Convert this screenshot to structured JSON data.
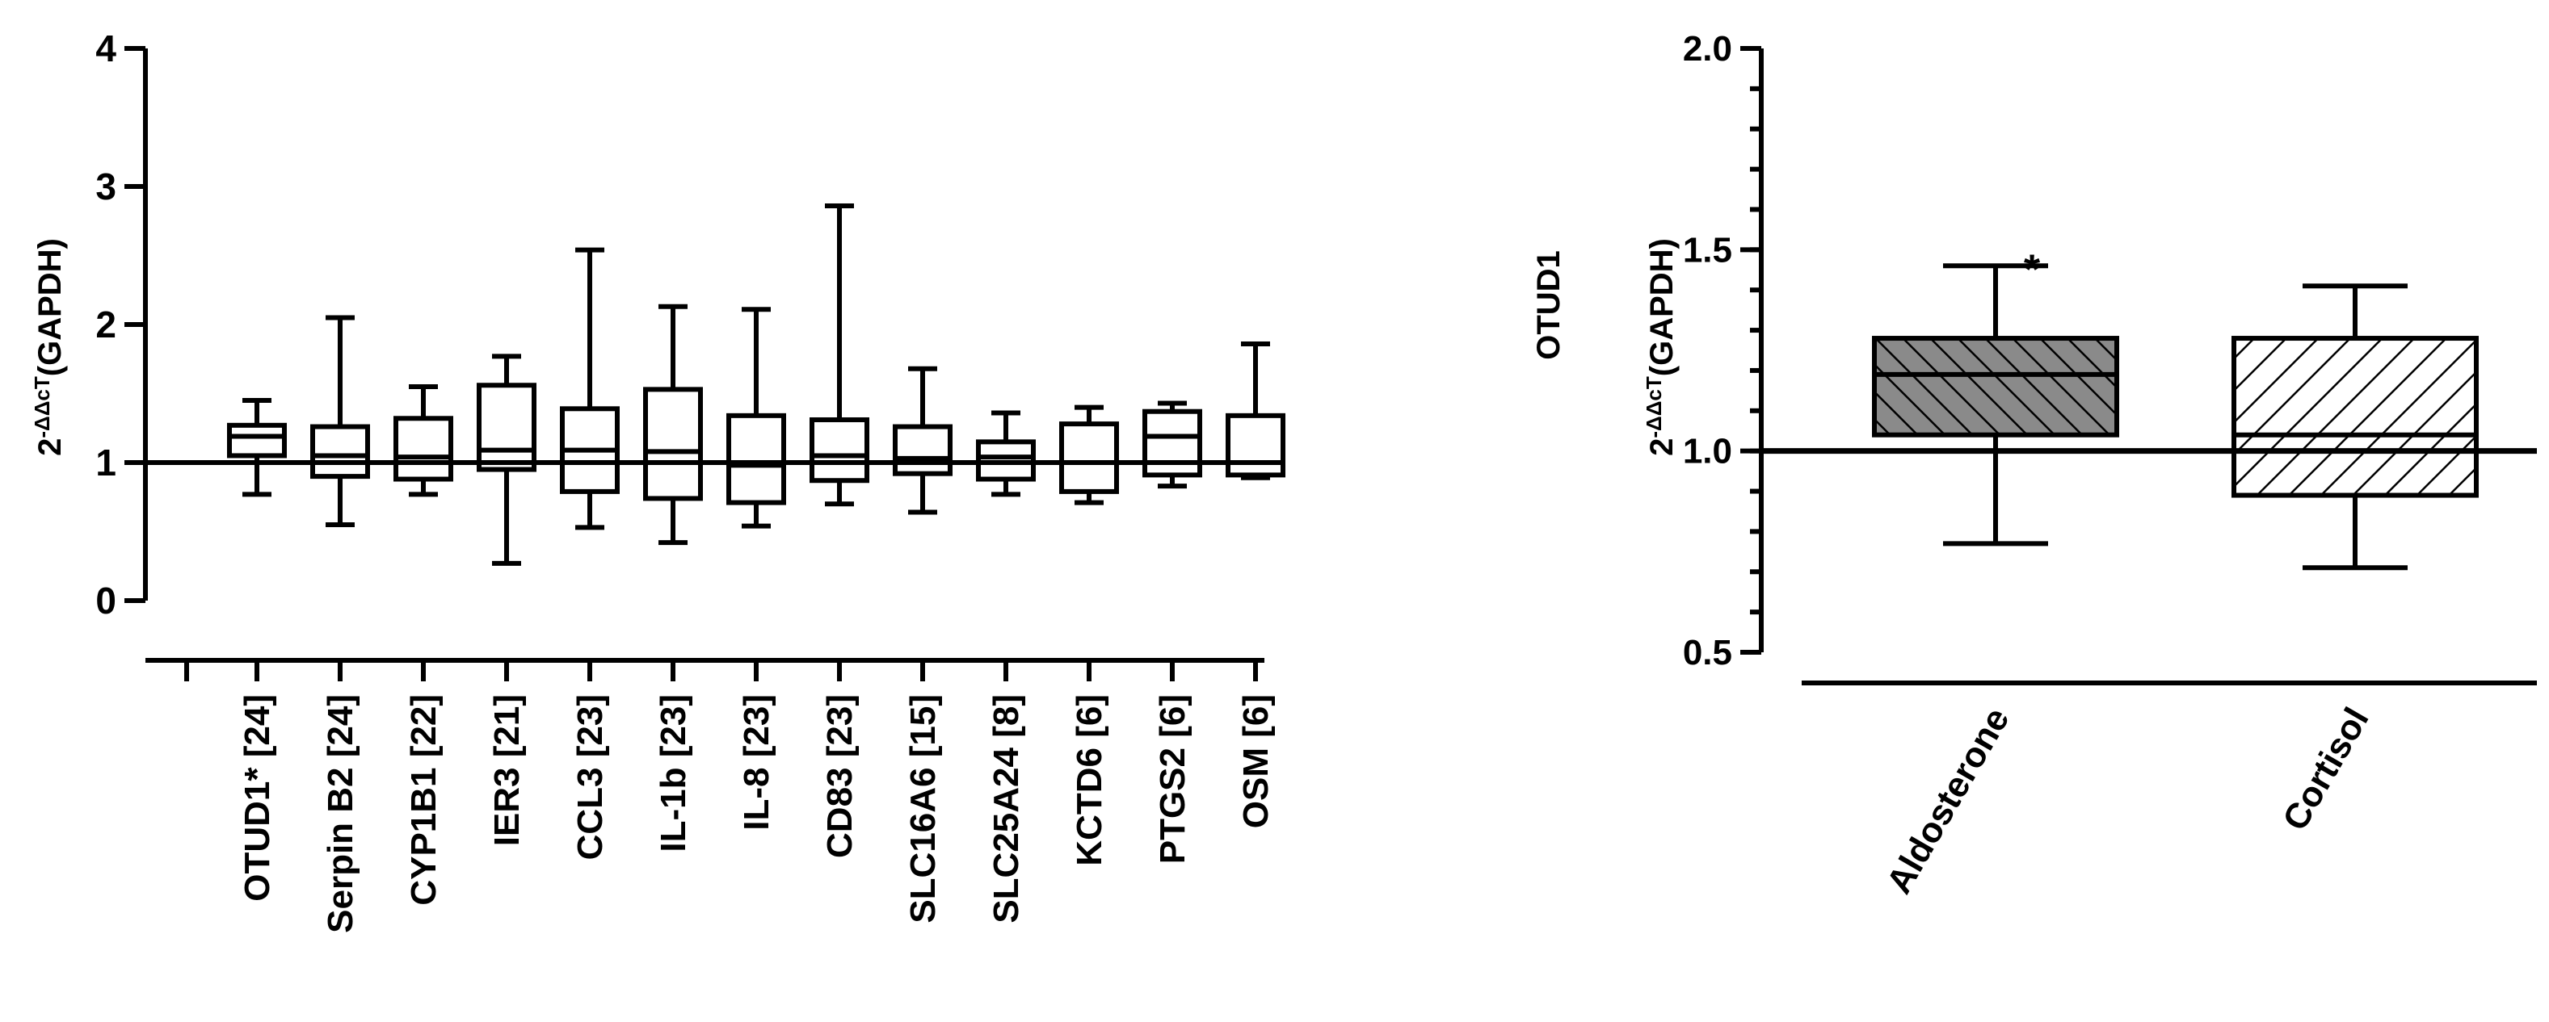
{
  "chart_data": [
    {
      "type": "box",
      "ylabel_main": "2",
      "ylabel_sup": "-ΔΔcT",
      "ylabel_tail": "(GAPDH)",
      "ylim": [
        0,
        4
      ],
      "yticks": [
        "0",
        "1",
        "2",
        "3",
        "4"
      ],
      "reference_line": 1,
      "categories": [
        "OTUD1* [24]",
        "Serpin B2 [24]",
        "CYP1B1 [22]",
        "IER3 [21]",
        "CCL3 [23]",
        "IL-1b [23]",
        "IL-8 [23]",
        "CD83 [23]",
        "SLC16A6 [15]",
        "SLC25A24 [8]",
        "KCTD6 [6]",
        "PTGS2 [6]",
        "OSM [6]"
      ],
      "boxes": [
        {
          "min": 0.77,
          "q1": 1.05,
          "median": 1.19,
          "q3": 1.27,
          "max": 1.45
        },
        {
          "min": 0.55,
          "q1": 0.9,
          "median": 1.05,
          "q3": 1.26,
          "max": 2.05
        },
        {
          "min": 0.77,
          "q1": 0.88,
          "median": 1.04,
          "q3": 1.32,
          "max": 1.55
        },
        {
          "min": 0.27,
          "q1": 0.95,
          "median": 1.09,
          "q3": 1.56,
          "max": 1.77
        },
        {
          "min": 0.53,
          "q1": 0.79,
          "median": 1.09,
          "q3": 1.39,
          "max": 2.54
        },
        {
          "min": 0.42,
          "q1": 0.74,
          "median": 1.08,
          "q3": 1.53,
          "max": 2.13
        },
        {
          "min": 0.54,
          "q1": 0.71,
          "median": 0.98,
          "q3": 1.34,
          "max": 2.11
        },
        {
          "min": 0.7,
          "q1": 0.87,
          "median": 1.05,
          "q3": 1.31,
          "max": 2.86
        },
        {
          "min": 0.64,
          "q1": 0.92,
          "median": 1.03,
          "q3": 1.26,
          "max": 1.68
        },
        {
          "min": 0.77,
          "q1": 0.88,
          "median": 1.04,
          "q3": 1.15,
          "max": 1.36
        },
        {
          "min": 0.71,
          "q1": 0.79,
          "median": 1.0,
          "q3": 1.28,
          "max": 1.4
        },
        {
          "min": 0.83,
          "q1": 0.91,
          "median": 1.19,
          "q3": 1.37,
          "max": 1.43
        },
        {
          "min": 0.89,
          "q1": 0.91,
          "median": 1.0,
          "q3": 1.34,
          "max": 1.86
        }
      ]
    },
    {
      "type": "box",
      "title": "OTUD1",
      "ylabel_main": "2",
      "ylabel_sup": "-ΔΔcT",
      "ylabel_tail": "(GAPDH)",
      "ylim": [
        0.5,
        2.0
      ],
      "yticks": [
        "0.5",
        "1.0",
        "1.5",
        "2.0"
      ],
      "reference_line": 1.0,
      "categories": [
        "Aldosterone",
        "Cortisol"
      ],
      "boxes": [
        {
          "min": 0.77,
          "q1": 1.04,
          "median": 1.19,
          "q3": 1.28,
          "max": 1.46,
          "fill": "#888888",
          "hatch": "dense"
        },
        {
          "min": 0.71,
          "q1": 0.89,
          "median": 1.04,
          "q3": 1.28,
          "max": 1.41,
          "fill": "#ffffff",
          "hatch": "sparse"
        }
      ],
      "annotations": [
        "*"
      ]
    }
  ]
}
